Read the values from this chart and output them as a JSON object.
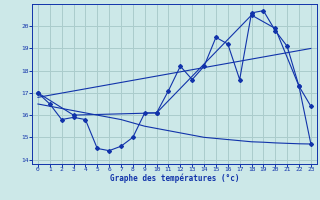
{
  "bg_color": "#cce8e8",
  "grid_color": "#aacccc",
  "line_color": "#1133aa",
  "xlabel": "Graphe des températures (°c)",
  "xlim": [
    -0.5,
    23.5
  ],
  "ylim": [
    13.8,
    21.0
  ],
  "yticks": [
    14,
    15,
    16,
    17,
    18,
    19,
    20
  ],
  "xticks": [
    0,
    1,
    2,
    3,
    4,
    5,
    6,
    7,
    8,
    9,
    10,
    11,
    12,
    13,
    14,
    15,
    16,
    17,
    18,
    19,
    20,
    21,
    22,
    23
  ],
  "curve1_x": [
    0,
    1,
    2,
    3,
    4,
    5,
    6,
    7,
    8,
    9,
    10,
    11,
    12,
    13,
    14,
    15,
    16,
    17,
    18,
    19,
    20,
    21,
    22,
    23
  ],
  "curve1_y": [
    17.0,
    16.5,
    15.8,
    15.9,
    15.8,
    14.5,
    14.4,
    14.6,
    15.0,
    16.1,
    16.1,
    17.1,
    18.2,
    17.6,
    18.2,
    19.5,
    19.2,
    17.6,
    20.6,
    20.7,
    19.8,
    19.1,
    17.3,
    16.4
  ],
  "curve2_x": [
    0,
    23
  ],
  "curve2_y": [
    16.8,
    19.0
  ],
  "curve3_x": [
    0,
    3,
    10,
    18,
    20,
    22,
    23
  ],
  "curve3_y": [
    17.0,
    16.0,
    16.1,
    20.5,
    19.9,
    17.3,
    14.7
  ],
  "curve4_x": [
    0,
    1,
    2,
    3,
    4,
    5,
    6,
    7,
    8,
    9,
    10,
    11,
    12,
    13,
    14,
    15,
    16,
    17,
    18,
    19,
    20,
    21,
    22,
    23
  ],
  "curve4_y": [
    16.5,
    16.4,
    16.3,
    16.2,
    16.1,
    16.0,
    15.9,
    15.8,
    15.65,
    15.5,
    15.4,
    15.3,
    15.2,
    15.1,
    15.0,
    14.95,
    14.9,
    14.85,
    14.8,
    14.78,
    14.75,
    14.73,
    14.71,
    14.7
  ]
}
